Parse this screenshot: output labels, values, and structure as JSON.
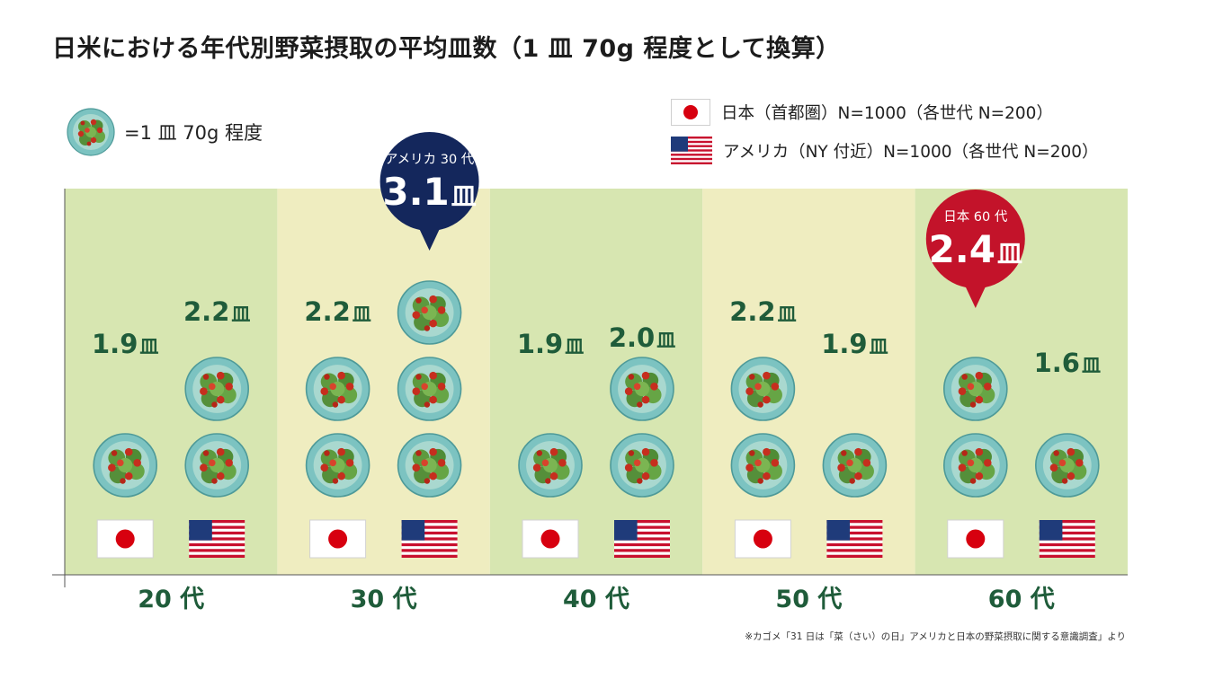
{
  "title": "日米における年代別野菜摂取の平均皿数（1 皿 70g 程度として換算）",
  "legend": {
    "unit": "=1 皿 70g 程度",
    "japan": "日本（首都圏）N=1000（各世代 N=200）",
    "usa": "アメリカ（NY 付近）N=1000（各世代 N=200）"
  },
  "source": "※カゴメ「31 日は「菜（さい）の日」アメリカと日本の野菜摂取に関する意識調査」より",
  "colors": {
    "band_green": "#d7e6b1",
    "band_cream": "#efedc0",
    "value_text": "#1f5c3a",
    "axis_text": "#1f5c3a",
    "callout_usa": "#14275c",
    "callout_japan": "#c3132a",
    "plate": "#7cc3c1",
    "jp_red": "#d7000f",
    "us_red": "#c8102e",
    "us_blue": "#1f3b7a"
  },
  "icons": {
    "unit": "salad-plate-icon",
    "japan": "japan-flag-icon",
    "usa": "usa-flag-icon"
  },
  "chart_data": {
    "type": "bar",
    "unit": "皿",
    "categories": [
      "20 代",
      "30 代",
      "40 代",
      "50 代",
      "60 代"
    ],
    "series": [
      {
        "name": "日本（首都圏）",
        "values": [
          1.9,
          2.2,
          1.9,
          2.2,
          2.4
        ],
        "labels": [
          "1.9皿",
          "2.2皿",
          "1.9皿",
          "2.2皿",
          ""
        ]
      },
      {
        "name": "アメリカ（NY 付近）",
        "values": [
          2.2,
          3.1,
          2.0,
          1.9,
          1.6
        ],
        "labels": [
          "2.2皿",
          "",
          "2.0皿",
          "1.9皿",
          "1.6皿"
        ]
      }
    ],
    "callouts": [
      {
        "title": "アメリカ 30 代",
        "value": "3.1",
        "unit": "皿",
        "series": 1,
        "category": 1
      },
      {
        "title": "日本 60 代",
        "value": "2.4",
        "unit": "皿",
        "series": 0,
        "category": 4
      }
    ]
  }
}
